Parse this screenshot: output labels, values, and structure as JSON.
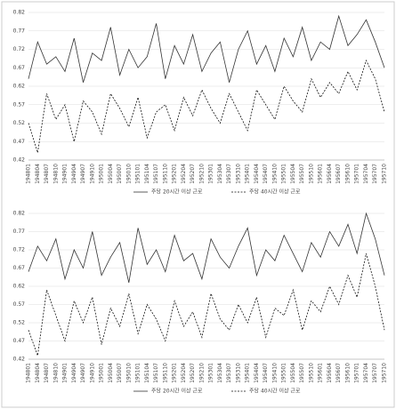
{
  "chart_data": [
    {
      "type": "line",
      "categories": [
        "194801",
        "194804",
        "194807",
        "194810",
        "194901",
        "194904",
        "194907",
        "194910",
        "195001",
        "195004",
        "195007",
        "195010",
        "195101",
        "195104",
        "195107",
        "195110",
        "195201",
        "195204",
        "195207",
        "195210",
        "195301",
        "195304",
        "195307",
        "195310",
        "195401",
        "195404",
        "195407",
        "195410",
        "195501",
        "195504",
        "195507",
        "195510",
        "195601",
        "195604",
        "195607",
        "195610",
        "195701",
        "195704",
        "195707",
        "195710"
      ],
      "ylim": [
        0.42,
        0.82
      ],
      "yticks": [
        0.42,
        0.47,
        0.52,
        0.57,
        0.62,
        0.67,
        0.72,
        0.77,
        0.82
      ],
      "grid": true,
      "series": [
        {
          "name": "주당 20시간 이상 근로",
          "color": "#333333",
          "dash": false,
          "values": [
            0.64,
            0.74,
            0.68,
            0.7,
            0.66,
            0.75,
            0.63,
            0.71,
            0.69,
            0.78,
            0.65,
            0.72,
            0.67,
            0.7,
            0.79,
            0.64,
            0.73,
            0.68,
            0.76,
            0.66,
            0.71,
            0.74,
            0.63,
            0.72,
            0.77,
            0.68,
            0.73,
            0.66,
            0.75,
            0.7,
            0.78,
            0.69,
            0.74,
            0.72,
            0.81,
            0.73,
            0.76,
            0.8,
            0.74,
            0.67
          ]
        },
        {
          "name": "주당 40시간 이상 근로",
          "color": "#111111",
          "dash": true,
          "values": [
            0.52,
            0.44,
            0.6,
            0.53,
            0.57,
            0.47,
            0.58,
            0.55,
            0.49,
            0.6,
            0.56,
            0.51,
            0.59,
            0.48,
            0.55,
            0.57,
            0.5,
            0.59,
            0.54,
            0.61,
            0.56,
            0.52,
            0.6,
            0.55,
            0.5,
            0.61,
            0.57,
            0.53,
            0.62,
            0.58,
            0.55,
            0.64,
            0.59,
            0.63,
            0.6,
            0.66,
            0.61,
            0.69,
            0.64,
            0.55
          ]
        }
      ]
    },
    {
      "type": "line",
      "categories": [
        "194801",
        "194804",
        "194807",
        "194810",
        "194901",
        "194904",
        "194907",
        "194910",
        "195001",
        "195004",
        "195007",
        "195010",
        "195101",
        "195104",
        "195107",
        "195110",
        "195201",
        "195204",
        "195207",
        "195210",
        "195301",
        "195304",
        "195307",
        "195310",
        "195401",
        "195404",
        "195407",
        "195410",
        "195501",
        "195504",
        "195507",
        "195510",
        "195601",
        "195604",
        "195607",
        "195610",
        "195701",
        "195704",
        "195707",
        "195710"
      ],
      "ylim": [
        0.42,
        0.82
      ],
      "yticks": [
        0.42,
        0.47,
        0.52,
        0.57,
        0.62,
        0.67,
        0.72,
        0.77,
        0.82
      ],
      "grid": true,
      "series": [
        {
          "name": "주당 20시간 이상 근로",
          "color": "#333333",
          "dash": false,
          "values": [
            0.66,
            0.73,
            0.69,
            0.75,
            0.64,
            0.72,
            0.67,
            0.77,
            0.65,
            0.7,
            0.74,
            0.63,
            0.78,
            0.68,
            0.72,
            0.66,
            0.76,
            0.69,
            0.71,
            0.64,
            0.75,
            0.7,
            0.67,
            0.73,
            0.78,
            0.65,
            0.72,
            0.69,
            0.76,
            0.71,
            0.66,
            0.74,
            0.7,
            0.77,
            0.73,
            0.79,
            0.71,
            0.82,
            0.75,
            0.65
          ]
        },
        {
          "name": "주당 40시간 이상 근로",
          "color": "#111111",
          "dash": true,
          "values": [
            0.5,
            0.43,
            0.61,
            0.54,
            0.47,
            0.58,
            0.52,
            0.59,
            0.46,
            0.56,
            0.51,
            0.6,
            0.49,
            0.57,
            0.53,
            0.47,
            0.58,
            0.51,
            0.55,
            0.48,
            0.6,
            0.53,
            0.5,
            0.57,
            0.52,
            0.59,
            0.48,
            0.56,
            0.54,
            0.61,
            0.5,
            0.58,
            0.55,
            0.62,
            0.57,
            0.65,
            0.59,
            0.71,
            0.62,
            0.5
          ]
        }
      ]
    }
  ]
}
